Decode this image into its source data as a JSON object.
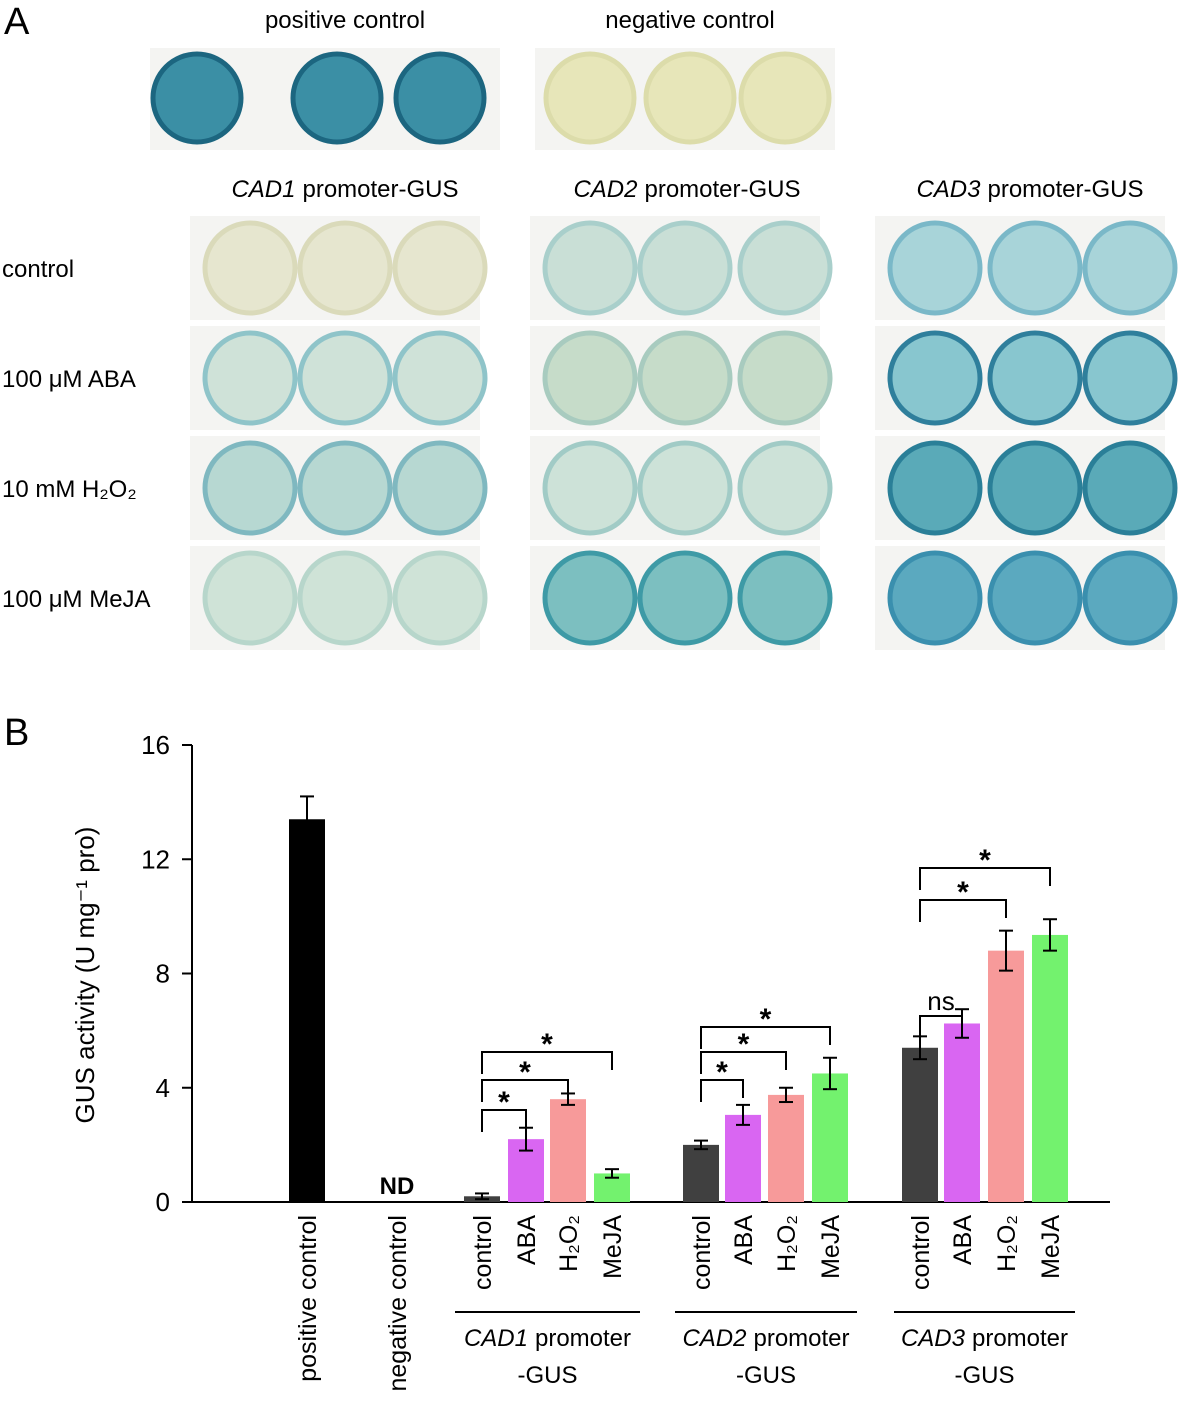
{
  "panel_a": {
    "label": "A",
    "top_titles": [
      "positive control",
      "negative control"
    ],
    "column_titles": [
      {
        "gene": "CAD1",
        "text": "promoter-GUS"
      },
      {
        "gene": "CAD2",
        "text": "promoter-GUS"
      },
      {
        "gene": "CAD3",
        "text": "promoter-GUS"
      }
    ],
    "row_labels": [
      "control",
      "100 μM ABA",
      "10 mM H₂O₂",
      "100 μM MeJA"
    ]
  },
  "chart_data": {
    "type": "bar",
    "panel_label": "B",
    "y_label": "GUS activity (U mg⁻¹ pro)",
    "categories": [
      "positive control",
      "negative control",
      "control",
      "ABA",
      "H₂O₂",
      "MeJA",
      "control",
      "ABA",
      "H₂O₂",
      "MeJA",
      "control",
      "ABA",
      "H₂O₂",
      "MeJA"
    ],
    "values": [
      13.4,
      null,
      0.2,
      2.2,
      3.6,
      1.0,
      2.0,
      3.05,
      3.75,
      4.5,
      5.4,
      6.25,
      8.8,
      9.35
    ],
    "errors": [
      0.8,
      null,
      0.1,
      0.4,
      0.2,
      0.15,
      0.15,
      0.35,
      0.25,
      0.55,
      0.4,
      0.5,
      0.7,
      0.55
    ],
    "value_labels": [
      null,
      "ND",
      null,
      null,
      null,
      null,
      null,
      null,
      null,
      null,
      null,
      null,
      null,
      null
    ],
    "colors": [
      "#000000",
      "#000000",
      "#404040",
      "#d966f2",
      "#f79a9a",
      "#73f26e",
      "#404040",
      "#d966f2",
      "#f79a9a",
      "#73f26e",
      "#404040",
      "#d966f2",
      "#f79a9a",
      "#73f26e"
    ],
    "groups": [
      {
        "gene": "CAD1",
        "line1": "promoter",
        "line2": "-GUS"
      },
      {
        "gene": "CAD2",
        "line1": "promoter",
        "line2": "-GUS"
      },
      {
        "gene": "CAD3",
        "line1": "promoter",
        "line2": "-GUS"
      }
    ],
    "annotations": [
      "*",
      "*",
      "*",
      "*",
      "*",
      "*",
      "ns",
      "*",
      "*"
    ],
    "ylim": [
      0,
      16
    ],
    "yticks": [
      0,
      4,
      8,
      12,
      16
    ]
  }
}
